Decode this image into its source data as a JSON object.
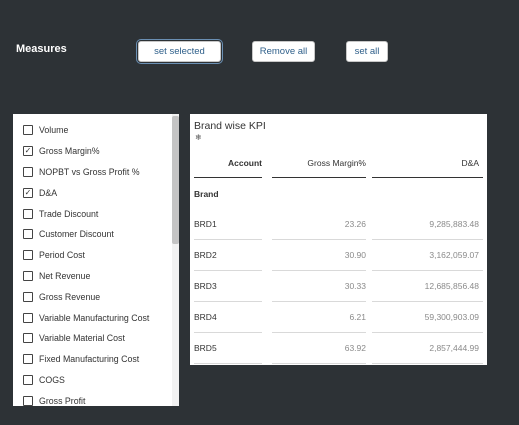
{
  "header": {
    "measures_label": "Measures",
    "buttons": {
      "set_selected": "set selected",
      "remove_all": "Remove all",
      "set_all": "set all"
    }
  },
  "measures": [
    {
      "label": "Volume",
      "checked": false
    },
    {
      "label": "Gross Margin%",
      "checked": true
    },
    {
      "label": "NOPBT vs Gross Profit %",
      "checked": false
    },
    {
      "label": "D&A",
      "checked": true
    },
    {
      "label": "Trade Discount",
      "checked": false
    },
    {
      "label": "Customer Discount",
      "checked": false
    },
    {
      "label": "Period Cost",
      "checked": false
    },
    {
      "label": "Net Revenue",
      "checked": false
    },
    {
      "label": "Gross Revenue",
      "checked": false
    },
    {
      "label": "Variable Manufacturing Cost",
      "checked": false
    },
    {
      "label": "Variable Material Cost",
      "checked": false
    },
    {
      "label": "Fixed Manufacturing Cost",
      "checked": false
    },
    {
      "label": "COGS",
      "checked": false
    },
    {
      "label": "Gross Profit",
      "checked": false
    }
  ],
  "kpi": {
    "title": "Brand wise KPI",
    "icon": "snowflake-icon",
    "columns": {
      "account": "Account",
      "gross_margin": "Gross Margin%",
      "da": "D&A"
    },
    "dimension_label": "Brand",
    "rows": [
      {
        "brand": "BRD1",
        "gross_margin": "23.26",
        "da": "9,285,883.48"
      },
      {
        "brand": "BRD2",
        "gross_margin": "30.90",
        "da": "3,162,059.07"
      },
      {
        "brand": "BRD3",
        "gross_margin": "30.33",
        "da": "12,685,856.48"
      },
      {
        "brand": "BRD4",
        "gross_margin": "6.21",
        "da": "59,300,903.09"
      },
      {
        "brand": "BRD5",
        "gross_margin": "63.92",
        "da": "2,857,444.99"
      }
    ]
  },
  "colors": {
    "background": "#2d3236",
    "button_text": "#2e5f8a",
    "value_text": "#8a8a8a"
  }
}
